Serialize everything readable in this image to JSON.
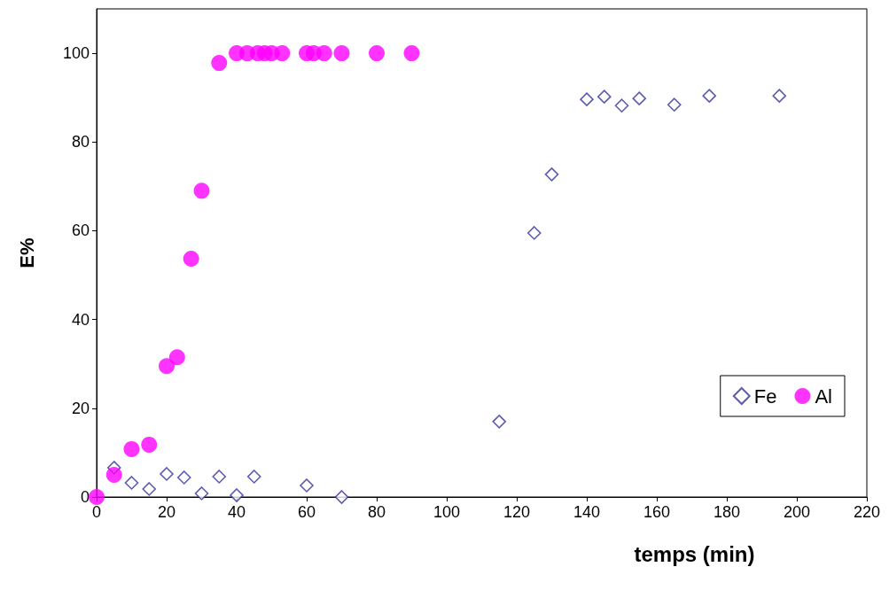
{
  "chart_data": {
    "type": "scatter",
    "xlabel": "temps (min)",
    "ylabel": "E%",
    "xlim": [
      0,
      220
    ],
    "xticks": [
      0,
      20,
      40,
      60,
      80,
      100,
      120,
      140,
      160,
      180,
      200,
      220
    ],
    "ylim": [
      0,
      110
    ],
    "yticks": [
      0,
      20,
      40,
      60,
      80,
      100
    ],
    "grid": false,
    "legend": "bottom right",
    "series": [
      {
        "name": "Fe",
        "color": "#333399",
        "marker": "diamond",
        "x": [
          5,
          10,
          15,
          20,
          25,
          30,
          35,
          40,
          45,
          60,
          70,
          115,
          125,
          130,
          140,
          145,
          150,
          155,
          165,
          175,
          195
        ],
        "values": [
          6.6,
          3.2,
          1.8,
          5.2,
          4.4,
          0.8,
          4.6,
          0.4,
          4.6,
          2.6,
          0,
          17,
          59.5,
          72.7,
          89.6,
          90.2,
          88.2,
          89.8,
          88.4,
          90.4,
          90.4
        ]
      },
      {
        "name": "Al",
        "color": "#ff00ff",
        "marker": "circle",
        "x": [
          0,
          5,
          10,
          15,
          20,
          23,
          27,
          30,
          35,
          40,
          43,
          46,
          48,
          50,
          53,
          60,
          62,
          65,
          70,
          80,
          90
        ],
        "values": [
          0,
          5,
          10.8,
          11.8,
          29.5,
          31.5,
          53.7,
          69,
          97.8,
          100,
          100,
          100,
          100,
          100,
          100,
          100,
          100,
          100,
          100,
          100,
          100
        ]
      }
    ]
  }
}
